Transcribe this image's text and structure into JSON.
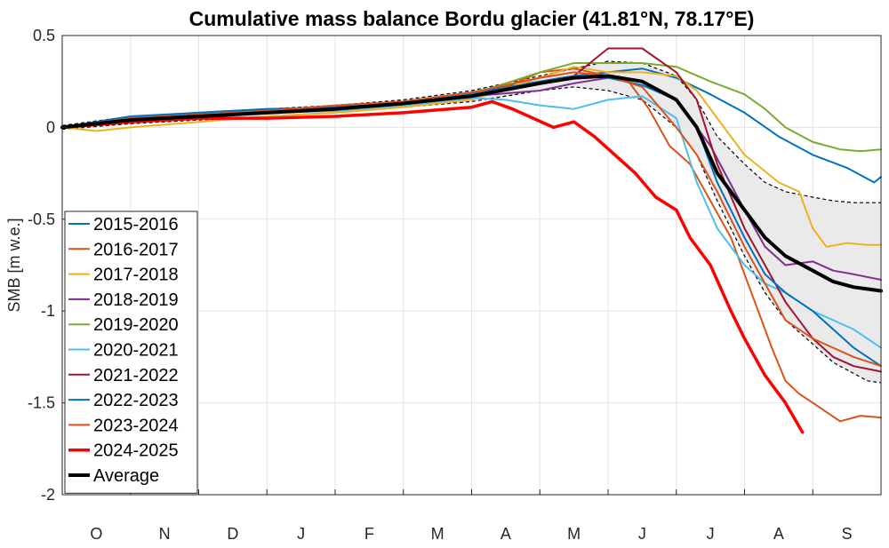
{
  "chart_data": {
    "type": "line",
    "title": "Cumulative mass balance Bordu glacier (41.81°N, 78.17°E)",
    "ylabel": "SMB [m w.e.]",
    "xlabel": "",
    "ylim": [
      -2,
      0.5
    ],
    "yticks": [
      0.5,
      0,
      -0.5,
      -1,
      -1.5,
      -2
    ],
    "ytick_labels": [
      "0.5",
      "0",
      "-0.5",
      "-1",
      "-1.5",
      "-2"
    ],
    "xlim": [
      0,
      12
    ],
    "month_labels": [
      "O",
      "N",
      "D",
      "J",
      "F",
      "M",
      "A",
      "M",
      "J",
      "J",
      "A",
      "S"
    ],
    "grid": true,
    "legend_position": "lower-left",
    "series": [
      {
        "name": "2015-2016",
        "color": "#0072BD",
        "width": 2,
        "x": [
          0,
          1,
          2,
          3,
          4,
          5,
          6,
          7,
          7.5,
          8,
          8.5,
          9,
          9.5,
          10,
          10.5,
          11,
          11.5,
          11.9,
          12
        ],
        "y": [
          0,
          0.05,
          0.08,
          0.1,
          0.11,
          0.14,
          0.19,
          0.25,
          0.28,
          0.3,
          0.32,
          0.27,
          0.18,
          0.08,
          -0.05,
          -0.15,
          -0.22,
          -0.3,
          -0.27
        ]
      },
      {
        "name": "2016-2017",
        "color": "#D95319",
        "width": 2,
        "x": [
          0,
          1,
          2,
          3,
          4,
          5,
          6,
          6.5,
          7,
          7.5,
          8,
          8.3,
          8.6,
          8.9,
          9.2,
          9.5,
          9.8,
          10,
          10.2,
          10.4,
          10.6,
          10.8,
          11,
          11.2,
          11.4,
          11.7,
          12
        ],
        "y": [
          0,
          0.04,
          0.06,
          0.08,
          0.09,
          0.12,
          0.16,
          0.22,
          0.3,
          0.32,
          0.28,
          0.25,
          0.1,
          -0.1,
          -0.2,
          -0.4,
          -0.6,
          -0.8,
          -1.0,
          -1.2,
          -1.38,
          -1.45,
          -1.5,
          -1.55,
          -1.6,
          -1.57,
          -1.58
        ]
      },
      {
        "name": "2017-2018",
        "color": "#EDB120",
        "width": 2,
        "x": [
          0,
          0.5,
          1,
          2,
          3,
          4,
          5,
          6,
          7,
          7.5,
          8,
          8.5,
          9,
          9.3,
          9.6,
          10,
          10.5,
          10.8,
          11,
          11.2,
          11.5,
          11.8,
          12
        ],
        "y": [
          0,
          -0.02,
          0.0,
          0.03,
          0.06,
          0.08,
          0.11,
          0.15,
          0.27,
          0.33,
          0.3,
          0.3,
          0.28,
          0.2,
          0.05,
          -0.15,
          -0.3,
          -0.35,
          -0.55,
          -0.65,
          -0.63,
          -0.64,
          -0.64
        ]
      },
      {
        "name": "2018-2019",
        "color": "#7E2F8E",
        "width": 2,
        "x": [
          0,
          1,
          2,
          3,
          4,
          5,
          6,
          7,
          7.5,
          8,
          8.5,
          9,
          9.5,
          10,
          10.3,
          10.6,
          11,
          11.3,
          11.6,
          12
        ],
        "y": [
          0,
          0.04,
          0.07,
          0.09,
          0.1,
          0.13,
          0.17,
          0.2,
          0.24,
          0.27,
          0.25,
          0.15,
          -0.1,
          -0.45,
          -0.65,
          -0.75,
          -0.73,
          -0.78,
          -0.8,
          -0.83
        ]
      },
      {
        "name": "2019-2020",
        "color": "#77AC30",
        "width": 2,
        "x": [
          0,
          1,
          2,
          3,
          4,
          5,
          6,
          7,
          7.5,
          8,
          8.5,
          9,
          9.5,
          10,
          10.3,
          10.6,
          11,
          11.4,
          11.7,
          12
        ],
        "y": [
          0,
          0.05,
          0.07,
          0.09,
          0.11,
          0.13,
          0.18,
          0.3,
          0.35,
          0.35,
          0.35,
          0.33,
          0.25,
          0.18,
          0.1,
          0.0,
          -0.08,
          -0.12,
          -0.13,
          -0.12
        ]
      },
      {
        "name": "2020-2021",
        "color": "#4DBEEE",
        "width": 2,
        "x": [
          0,
          1,
          2,
          3,
          4,
          5,
          6,
          6.5,
          7,
          7.5,
          8,
          8.5,
          9,
          9.3,
          9.6,
          10,
          10.3,
          10.6,
          11,
          11.3,
          11.6,
          12
        ],
        "y": [
          0,
          0.05,
          0.07,
          0.08,
          0.09,
          0.12,
          0.16,
          0.15,
          0.12,
          0.1,
          0.15,
          0.17,
          0.05,
          -0.3,
          -0.55,
          -0.75,
          -0.85,
          -0.9,
          -1.0,
          -1.05,
          -1.1,
          -1.2
        ]
      },
      {
        "name": "2021-2022",
        "color": "#A2142F",
        "width": 2,
        "x": [
          0,
          1,
          2,
          3,
          4,
          5,
          6,
          7,
          7.5,
          8,
          8.5,
          9,
          9.3,
          9.6,
          10,
          10.3,
          10.6,
          11,
          11.3,
          11.6,
          12
        ],
        "y": [
          0,
          0.04,
          0.06,
          0.08,
          0.1,
          0.13,
          0.17,
          0.24,
          0.28,
          0.43,
          0.43,
          0.3,
          0.15,
          -0.2,
          -0.55,
          -0.75,
          -0.95,
          -1.15,
          -1.25,
          -1.3,
          -1.33
        ]
      },
      {
        "name": "2022-2023",
        "color": "#0072BD",
        "width": 2,
        "x": [
          0,
          1,
          2,
          3,
          4,
          5,
          6,
          7,
          7.5,
          8,
          8.5,
          9,
          9.3,
          9.6,
          10,
          10.3,
          10.6,
          11,
          11.3,
          11.6,
          12
        ],
        "y": [
          0,
          0.06,
          0.08,
          0.1,
          0.11,
          0.14,
          0.18,
          0.25,
          0.28,
          0.27,
          0.23,
          0.15,
          0.0,
          -0.3,
          -0.6,
          -0.8,
          -0.9,
          -1.0,
          -1.1,
          -1.2,
          -1.3
        ]
      },
      {
        "name": "2023-2024",
        "color": "#D95319",
        "width": 2,
        "x": [
          0,
          1,
          2,
          3,
          4,
          5,
          6,
          7,
          7.5,
          8,
          8.5,
          9,
          9.3,
          9.6,
          10,
          10.3,
          10.6,
          11,
          11.3,
          11.6,
          12
        ],
        "y": [
          0,
          0.05,
          0.07,
          0.09,
          0.12,
          0.14,
          0.19,
          0.27,
          0.3,
          0.28,
          0.22,
          0.0,
          -0.15,
          -0.35,
          -0.65,
          -0.85,
          -1.05,
          -1.15,
          -1.2,
          -1.25,
          -1.3
        ]
      },
      {
        "name": "2024-2025",
        "color": "#FF0000",
        "width": 3.5,
        "x": [
          0,
          1,
          2,
          3,
          4,
          5,
          6,
          6.3,
          6.6,
          6.9,
          7.2,
          7.5,
          7.8,
          8.1,
          8.4,
          8.7,
          9.0,
          9.2,
          9.5,
          9.8,
          10.0,
          10.3,
          10.6,
          10.85
        ],
        "y": [
          0,
          0.03,
          0.05,
          0.05,
          0.06,
          0.08,
          0.11,
          0.14,
          0.1,
          0.05,
          0.0,
          0.03,
          -0.05,
          -0.15,
          -0.25,
          -0.38,
          -0.45,
          -0.6,
          -0.75,
          -1.0,
          -1.15,
          -1.35,
          -1.5,
          -1.66
        ]
      },
      {
        "name": "Average",
        "color": "#000000",
        "width": 4,
        "x": [
          0,
          1,
          2,
          3,
          4,
          5,
          6,
          7,
          7.5,
          8,
          8.5,
          9,
          9.3,
          9.6,
          10,
          10.3,
          10.6,
          11,
          11.3,
          11.6,
          11.8,
          12
        ],
        "y": [
          0,
          0.04,
          0.06,
          0.08,
          0.1,
          0.13,
          0.17,
          0.24,
          0.27,
          0.28,
          0.25,
          0.15,
          0.0,
          -0.25,
          -0.45,
          -0.6,
          -0.7,
          -0.78,
          -0.84,
          -0.87,
          -0.88,
          -0.89
        ]
      }
    ],
    "band": {
      "color": "#e6e6e6",
      "x": [
        0,
        1,
        2,
        3,
        4,
        5,
        6,
        7,
        7.5,
        8,
        8.5,
        9,
        9.3,
        9.6,
        10,
        10.3,
        10.6,
        11,
        11.3,
        11.6,
        11.8,
        12
      ],
      "upper": [
        0.01,
        0.06,
        0.08,
        0.1,
        0.12,
        0.15,
        0.2,
        0.28,
        0.32,
        0.36,
        0.35,
        0.28,
        0.15,
        -0.05,
        -0.2,
        -0.3,
        -0.35,
        -0.38,
        -0.4,
        -0.41,
        -0.41,
        -0.41
      ],
      "lower": [
        -0.01,
        0.02,
        0.04,
        0.06,
        0.08,
        0.11,
        0.14,
        0.2,
        0.22,
        0.2,
        0.15,
        0.0,
        -0.15,
        -0.4,
        -0.7,
        -0.9,
        -1.05,
        -1.18,
        -1.28,
        -1.34,
        -1.38,
        -1.39
      ]
    }
  }
}
